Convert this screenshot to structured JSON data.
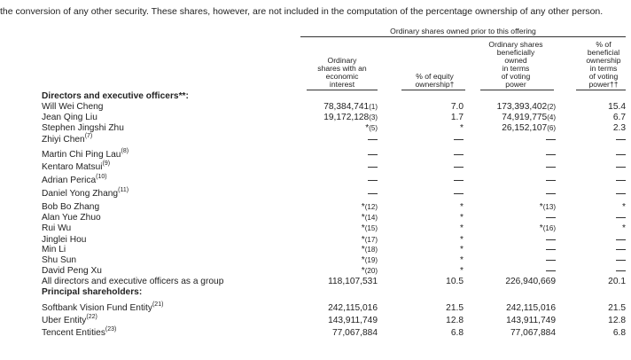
{
  "intro_text": "the conversion of any other security. These shares, however, are not included in the computation of the percentage ownership of any other person.",
  "header": {
    "group": "Ordinary shares owned prior to this offering",
    "col1": [
      "Ordinary",
      "shares with an",
      "economic",
      "interest"
    ],
    "col2": [
      "% of equity",
      "ownership†"
    ],
    "col3": [
      "Ordinary shares",
      "beneficially",
      "owned",
      "in terms",
      "of voting",
      "power"
    ],
    "col4": [
      "% of",
      "beneficial",
      "ownership",
      "in terms",
      "of voting",
      "power††"
    ]
  },
  "rows": [
    {
      "name": "Directors and executive officers**:",
      "bold": true
    },
    {
      "name": "Will Wei Cheng",
      "c1": "78,384,741",
      "c1n": "(1)",
      "c2": "7.0",
      "c3": "173,393,402",
      "c3n": "(2)",
      "c4": "15.4"
    },
    {
      "name": "Jean Qing Liu",
      "c1": "19,172,128",
      "c1n": "(3)",
      "c2": "1.7",
      "c3": "74,919,775",
      "c3n": "(4)",
      "c4": "6.7"
    },
    {
      "name": "Stephen Jingshi Zhu",
      "c1": "*",
      "c1n": "(5)",
      "c2": "*",
      "c3": "26,152,107",
      "c3n": "(6)",
      "c4": "2.3"
    },
    {
      "name": "Zhiyi Chen",
      "sup": "(7)",
      "dash": true
    },
    {
      "name": "Martin Chi Ping Lau",
      "sup": "(8)",
      "dash": true
    },
    {
      "name": "Kentaro Matsui",
      "sup": "(9)",
      "dash": true
    },
    {
      "name": "Adrian Perica",
      "sup": "(10)",
      "dash": true
    },
    {
      "name": "Daniel Yong Zhang",
      "sup": "(11)",
      "dash": true
    },
    {
      "name": "Bob Bo Zhang",
      "c1": "*",
      "c1n": "(12)",
      "c2": "*",
      "c3": "*",
      "c3n": "(13)",
      "c4": "*"
    },
    {
      "name": "Alan Yue Zhuo",
      "c1": "*",
      "c1n": "(14)",
      "c2": "*",
      "c3dash": true,
      "c4dash": true
    },
    {
      "name": "Rui Wu",
      "c1": "*",
      "c1n": "(15)",
      "c2": "*",
      "c3": "*",
      "c3n": "(16)",
      "c4": "*"
    },
    {
      "name": "Jinglei Hou",
      "c1": "*",
      "c1n": "(17)",
      "c2": "*",
      "c3dash": true,
      "c4dash": true
    },
    {
      "name": "Min Li",
      "c1": "*",
      "c1n": "(18)",
      "c2": "*",
      "c3dash": true,
      "c4dash": true
    },
    {
      "name": "Shu Sun",
      "c1": "*",
      "c1n": "(19)",
      "c2": "*",
      "c3dash": true,
      "c4dash": true
    },
    {
      "name": "David Peng Xu",
      "c1": "*",
      "c1n": "(20)",
      "c2": "*",
      "c3dash": true,
      "c4dash": true
    },
    {
      "name": "All directors and executive officers as a group",
      "c1": "118,107,531",
      "c2": "10.5",
      "c3": "226,940,669",
      "c4": "20.1"
    },
    {
      "name": "Principal shareholders:",
      "bold": true
    },
    {
      "name": "Softbank Vision Fund Entity",
      "sup": "(21)",
      "c1": "242,115,016",
      "c2": "21.5",
      "c3": "242,115,016",
      "c4": "21.5"
    },
    {
      "name": "Uber Entity",
      "sup": "(22)",
      "c1": "143,911,749",
      "c2": "12.8",
      "c3": "143,911,749",
      "c4": "12.8"
    },
    {
      "name": "Tencent Entities",
      "sup": "(23)",
      "c1": "77,067,884",
      "c2": "6.8",
      "c3": "77,067,884",
      "c4": "6.8"
    }
  ]
}
